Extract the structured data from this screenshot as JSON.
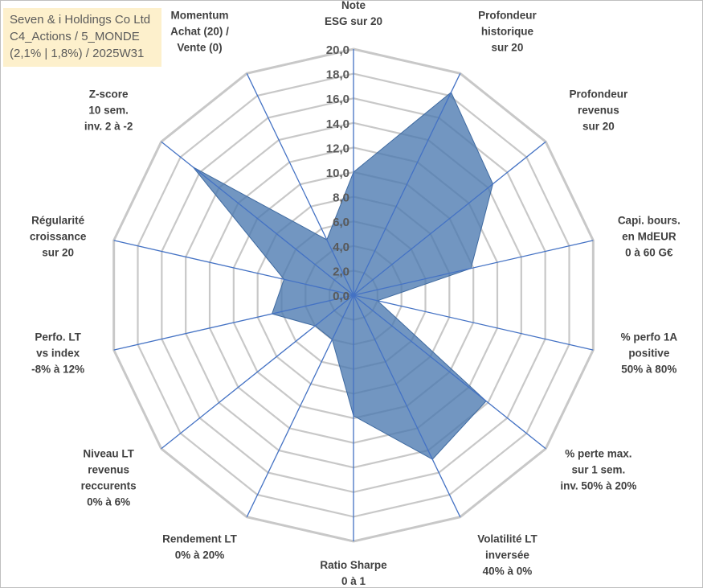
{
  "title_box": {
    "line1": "Seven & i Holdings Co Ltd",
    "line2": "C4_Actions / 5_MONDE",
    "line3": "(2,1% | 1,8%) / 2025W31"
  },
  "colors": {
    "fill": "#4a78b0",
    "grid": "#c8c8c8",
    "spoke": "#4472c4",
    "title_bg": "#fdf0cc"
  },
  "chart_data": {
    "type": "radar",
    "title": "",
    "rmin": 0,
    "rmax": 20,
    "tick_step": 2,
    "tick_labels": [
      "0,0",
      "2,0",
      "4,0",
      "6,0",
      "8,0",
      "10,0",
      "12,0",
      "14,0",
      "16,0",
      "18,0",
      "20,0"
    ],
    "grid": true,
    "axes": [
      {
        "label": [
          "Note",
          "ESG sur 20"
        ],
        "value": 10
      },
      {
        "label": [
          "Profondeur",
          "historique",
          "sur 20"
        ],
        "value": 18.3
      },
      {
        "label": [
          "Profondeur",
          "revenus",
          "sur 20"
        ],
        "value": 14.5
      },
      {
        "label": [
          "Capi. bours.",
          "en MdEUR",
          "0 à 60 G€"
        ],
        "value": 9.8
      },
      {
        "label": [
          "% perfo 1A",
          "positive",
          "50% à 80%"
        ],
        "value": 2
      },
      {
        "label": [
          "% perte max.",
          "sur 1 sem.",
          "inv. 50% à 20%"
        ],
        "value": 13.8
      },
      {
        "label": [
          "Volatilité LT",
          "inversée",
          "40% à 0%"
        ],
        "value": 14.8
      },
      {
        "label": [
          "Ratio Sharpe",
          "0 à 1"
        ],
        "value": 9.8
      },
      {
        "label": [
          "Rendement LT",
          "0% à 20%"
        ],
        "value": 4
      },
      {
        "label": [
          "Niveau LT",
          "revenus",
          "reccurents",
          "0% à 6%"
        ],
        "value": 4
      },
      {
        "label": [
          "Perfo. LT",
          "vs index",
          "-8% à 12%"
        ],
        "value": 6.8
      },
      {
        "label": [
          "Régularité",
          "croissance",
          "sur 20"
        ],
        "value": 5.8
      },
      {
        "label": [
          "Z-score",
          "10 sem.",
          "inv. 2 à -2"
        ],
        "value": 16.7
      },
      {
        "label": [
          "Momentum",
          "Achat (20) /",
          "Vente (0)"
        ],
        "value": 5
      }
    ]
  }
}
